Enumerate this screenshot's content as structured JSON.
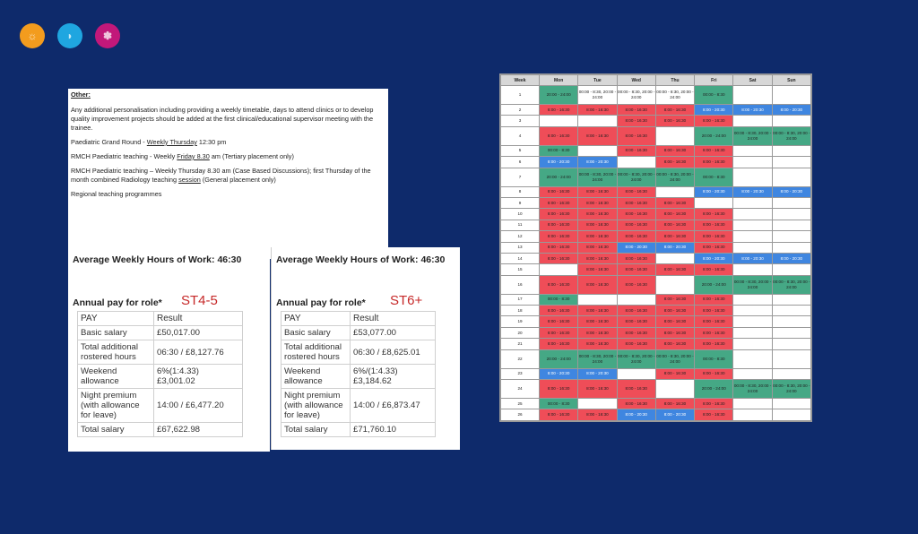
{
  "brand": {
    "dot_colors": [
      "#f39c1e",
      "#1fa6e0",
      "#c2187a"
    ],
    "dot_glyphs": [
      "☼",
      "◗",
      "✽"
    ]
  },
  "other": {
    "heading": "Other:",
    "para1": "Any additional personalisation including providing a weekly timetable, days to attend clinics or to develop quality improvement projects should be added at the first clinical/educational supervisor meeting with the trainee.",
    "grand_round_prefix": "Paediatric Grand Round - ",
    "grand_round_day": "Weekly  Thursday",
    "grand_round_time": "  12:30 pm",
    "rmch1_prefix": "RMCH Paediatric teaching - Weekly ",
    "rmch1_day": "Friday  8.30",
    "rmch1_suffix": " am (Tertiary placement  only)",
    "rmch2_prefix": "RMCH Paediatric teaching – Weekly Thursday 8.30 am (Case Based Discussions); first Thursday of the month combined Radiology teaching ",
    "rmch2_session": "session",
    "rmch2_suffix": "  (General placement only)",
    "regional": "Regional teaching programmes"
  },
  "pay_panels": [
    {
      "hours": "Average Weekly Hours of Work:  46:30",
      "annual": "Annual pay for role*",
      "role": "ST4-5",
      "hdr_pay": "PAY",
      "hdr_result": "Result",
      "rows": [
        {
          "label": "Basic salary",
          "value": "£50,017.00"
        },
        {
          "label": "Total additional rostered hours",
          "value": "06:30 / £8,127.76"
        },
        {
          "label": "Weekend allowance",
          "value": "6%(1:4.33) £3,001.02"
        },
        {
          "label": "Night premium (with allowance for leave)",
          "value": "14:00 / £6,477.20"
        },
        {
          "label": "Total salary",
          "value": "£67,622.98"
        }
      ]
    },
    {
      "hours": "Average Weekly Hours of Work:  46:30",
      "annual": "Annual pay for role*",
      "role": "ST6+",
      "hdr_pay": "PAY",
      "hdr_result": "Result",
      "rows": [
        {
          "label": "Basic salary",
          "value": "£53,077.00"
        },
        {
          "label": "Total additional rostered hours",
          "value": "06:30 / £8,625.01"
        },
        {
          "label": "Weekend allowance",
          "value": "6%/(1:4.33) £3,184.62"
        },
        {
          "label": "Night premium (with allowance for leave)",
          "value": "14:00 / £6,873.47"
        },
        {
          "label": "Total salary",
          "value": "£71,760.10"
        }
      ]
    }
  ],
  "schedule": {
    "headers": [
      "Week",
      "Mon",
      "Tue",
      "Wed",
      "Thu",
      "Fri",
      "Sat",
      "Sun"
    ],
    "rows": [
      {
        "week": "1",
        "tall": true,
        "cells": [
          [
            "teal",
            "20:00 - 24:00"
          ],
          [
            "empty",
            "00:00 - 8:30, 20:00 - 24:00"
          ],
          [
            "empty",
            "00:00 - 8:30, 20:00 - 24:00"
          ],
          [
            "empty",
            "00:00 - 8:30, 20:00 - 24:00"
          ],
          [
            "teal",
            "00:00 - 8:30"
          ],
          [
            "empty",
            ""
          ],
          [
            "empty",
            ""
          ]
        ]
      },
      {
        "week": "2",
        "cells": [
          [
            "red",
            "8:00 - 16:30"
          ],
          [
            "red",
            "8:00 - 16:30"
          ],
          [
            "red",
            "8:00 - 16:30"
          ],
          [
            "red",
            "8:00 - 16:30"
          ],
          [
            "blue",
            "8:00 - 20:30"
          ],
          [
            "blue",
            "8:00 - 20:30"
          ],
          [
            "blue",
            "8:00 - 20:30"
          ]
        ]
      },
      {
        "week": "3",
        "cells": [
          [
            "empty",
            ""
          ],
          [
            "empty",
            ""
          ],
          [
            "red",
            "8:00 - 16:30"
          ],
          [
            "red",
            "8:00 - 16:30"
          ],
          [
            "red",
            "8:00 - 16:30"
          ],
          [
            "empty",
            ""
          ],
          [
            "empty",
            ""
          ]
        ]
      },
      {
        "week": "4",
        "tall": true,
        "cells": [
          [
            "red",
            "8:00 - 16:30"
          ],
          [
            "red",
            "8:00 - 16:30"
          ],
          [
            "red",
            "8:00 - 16:30"
          ],
          [
            "empty",
            ""
          ],
          [
            "teal",
            "20:00 - 24:00"
          ],
          [
            "teal",
            "00:00 - 8:30, 20:00 - 24:00"
          ],
          [
            "teal",
            "00:00 - 8:30, 20:00 - 24:00"
          ]
        ]
      },
      {
        "week": "5",
        "cells": [
          [
            "teal",
            "00:00 - 8:30"
          ],
          [
            "empty",
            ""
          ],
          [
            "red",
            "8:00 - 16:30"
          ],
          [
            "red",
            "8:00 - 16:30"
          ],
          [
            "red",
            "8:00 - 16:30"
          ],
          [
            "empty",
            ""
          ],
          [
            "empty",
            ""
          ]
        ]
      },
      {
        "week": "6",
        "cells": [
          [
            "blue",
            "8:00 - 20:30"
          ],
          [
            "blue",
            "8:00 - 20:30"
          ],
          [
            "empty",
            ""
          ],
          [
            "red",
            "8:00 - 16:30"
          ],
          [
            "red",
            "8:00 - 16:30"
          ],
          [
            "empty",
            ""
          ],
          [
            "empty",
            ""
          ]
        ]
      },
      {
        "week": "7",
        "tall": true,
        "cells": [
          [
            "teal",
            "20:00 - 24:00"
          ],
          [
            "teal",
            "00:00 - 8:30, 20:00 - 24:00"
          ],
          [
            "teal",
            "00:00 - 8:30, 20:00 - 24:00"
          ],
          [
            "teal",
            "00:00 - 8:30, 20:00 - 24:00"
          ],
          [
            "teal",
            "00:00 - 8:30"
          ],
          [
            "empty",
            ""
          ],
          [
            "empty",
            ""
          ]
        ]
      },
      {
        "week": "8",
        "cells": [
          [
            "red",
            "8:00 - 16:30"
          ],
          [
            "red",
            "8:00 - 16:30"
          ],
          [
            "red",
            "8:00 - 16:30"
          ],
          [
            "empty",
            ""
          ],
          [
            "blue",
            "8:00 - 20:30"
          ],
          [
            "blue",
            "8:00 - 20:30"
          ],
          [
            "blue",
            "8:00 - 20:30"
          ]
        ]
      },
      {
        "week": "9",
        "cells": [
          [
            "red",
            "8:00 - 16:30"
          ],
          [
            "red",
            "8:00 - 16:30"
          ],
          [
            "red",
            "8:00 - 16:30"
          ],
          [
            "red",
            "8:00 - 16:30"
          ],
          [
            "empty",
            ""
          ],
          [
            "empty",
            ""
          ],
          [
            "empty",
            ""
          ]
        ]
      },
      {
        "week": "10",
        "cells": [
          [
            "red",
            "8:00 - 16:30"
          ],
          [
            "red",
            "8:00 - 16:30"
          ],
          [
            "red",
            "8:00 - 16:30"
          ],
          [
            "red",
            "8:00 - 16:30"
          ],
          [
            "red",
            "8:00 - 16:30"
          ],
          [
            "empty",
            ""
          ],
          [
            "empty",
            ""
          ]
        ]
      },
      {
        "week": "11",
        "cells": [
          [
            "red",
            "8:00 - 16:30"
          ],
          [
            "red",
            "8:00 - 16:30"
          ],
          [
            "red",
            "8:00 - 16:30"
          ],
          [
            "red",
            "8:00 - 16:30"
          ],
          [
            "red",
            "8:00 - 16:30"
          ],
          [
            "empty",
            ""
          ],
          [
            "empty",
            ""
          ]
        ]
      },
      {
        "week": "12",
        "cells": [
          [
            "red",
            "8:00 - 16:30"
          ],
          [
            "red",
            "8:00 - 16:30"
          ],
          [
            "red",
            "8:00 - 16:30"
          ],
          [
            "red",
            "8:00 - 16:30"
          ],
          [
            "red",
            "8:00 - 16:30"
          ],
          [
            "empty",
            ""
          ],
          [
            "empty",
            ""
          ]
        ]
      },
      {
        "week": "13",
        "cells": [
          [
            "red",
            "8:00 - 16:30"
          ],
          [
            "red",
            "8:00 - 16:30"
          ],
          [
            "blue",
            "8:00 - 20:30"
          ],
          [
            "blue",
            "8:00 - 20:30"
          ],
          [
            "red",
            "8:00 - 16:30"
          ],
          [
            "empty",
            ""
          ],
          [
            "empty",
            ""
          ]
        ]
      },
      {
        "week": "14",
        "cells": [
          [
            "red",
            "8:00 - 16:30"
          ],
          [
            "red",
            "8:00 - 16:30"
          ],
          [
            "red",
            "8:00 - 16:30"
          ],
          [
            "empty",
            ""
          ],
          [
            "blue",
            "8:00 - 20:30"
          ],
          [
            "blue",
            "8:00 - 20:30"
          ],
          [
            "blue",
            "8:00 - 20:30"
          ]
        ]
      },
      {
        "week": "15",
        "cells": [
          [
            "empty",
            ""
          ],
          [
            "red",
            "8:00 - 16:30"
          ],
          [
            "red",
            "8:00 - 16:30"
          ],
          [
            "red",
            "8:00 - 16:30"
          ],
          [
            "red",
            "8:00 - 16:30"
          ],
          [
            "empty",
            ""
          ],
          [
            "empty",
            ""
          ]
        ]
      },
      {
        "week": "16",
        "tall": true,
        "cells": [
          [
            "red",
            "8:00 - 16:30"
          ],
          [
            "red",
            "8:00 - 16:30"
          ],
          [
            "red",
            "8:00 - 16:30"
          ],
          [
            "empty",
            ""
          ],
          [
            "teal",
            "20:00 - 24:00"
          ],
          [
            "teal",
            "00:00 - 8:30, 20:00 - 24:00"
          ],
          [
            "teal",
            "00:00 - 8:30, 20:00 - 24:00"
          ]
        ]
      },
      {
        "week": "17",
        "cells": [
          [
            "teal",
            "00:00 - 8:30"
          ],
          [
            "empty",
            ""
          ],
          [
            "empty",
            ""
          ],
          [
            "red",
            "8:00 - 16:30"
          ],
          [
            "red",
            "8:00 - 16:30"
          ],
          [
            "empty",
            ""
          ],
          [
            "empty",
            ""
          ]
        ]
      },
      {
        "week": "18",
        "cells": [
          [
            "red",
            "8:00 - 16:30"
          ],
          [
            "red",
            "8:00 - 16:30"
          ],
          [
            "red",
            "8:00 - 16:30"
          ],
          [
            "red",
            "8:00 - 16:30"
          ],
          [
            "red",
            "8:00 - 16:30"
          ],
          [
            "empty",
            ""
          ],
          [
            "empty",
            ""
          ]
        ]
      },
      {
        "week": "19",
        "cells": [
          [
            "red",
            "8:00 - 16:30"
          ],
          [
            "red",
            "8:00 - 16:30"
          ],
          [
            "red",
            "8:00 - 16:30"
          ],
          [
            "red",
            "8:00 - 16:30"
          ],
          [
            "red",
            "8:00 - 16:30"
          ],
          [
            "empty",
            ""
          ],
          [
            "empty",
            ""
          ]
        ]
      },
      {
        "week": "20",
        "cells": [
          [
            "red",
            "8:00 - 16:30"
          ],
          [
            "red",
            "8:00 - 16:30"
          ],
          [
            "red",
            "8:00 - 16:30"
          ],
          [
            "red",
            "8:00 - 16:30"
          ],
          [
            "red",
            "8:00 - 16:30"
          ],
          [
            "empty",
            ""
          ],
          [
            "empty",
            ""
          ]
        ]
      },
      {
        "week": "21",
        "cells": [
          [
            "red",
            "8:00 - 16:30"
          ],
          [
            "red",
            "8:00 - 16:30"
          ],
          [
            "red",
            "8:00 - 16:30"
          ],
          [
            "red",
            "8:00 - 16:30"
          ],
          [
            "red",
            "8:00 - 16:30"
          ],
          [
            "empty",
            ""
          ],
          [
            "empty",
            ""
          ]
        ]
      },
      {
        "week": "22",
        "tall": true,
        "cells": [
          [
            "teal",
            "20:00 - 24:00"
          ],
          [
            "teal",
            "00:00 - 8:30, 20:00 - 24:00"
          ],
          [
            "teal",
            "00:00 - 8:30, 20:00 - 24:00"
          ],
          [
            "teal",
            "00:00 - 8:30, 20:00 - 24:00"
          ],
          [
            "teal",
            "00:00 - 8:30"
          ],
          [
            "empty",
            ""
          ],
          [
            "empty",
            ""
          ]
        ]
      },
      {
        "week": "23",
        "cells": [
          [
            "blue",
            "8:00 - 20:30"
          ],
          [
            "blue",
            "8:00 - 20:30"
          ],
          [
            "empty",
            ""
          ],
          [
            "red",
            "8:00 - 16:30"
          ],
          [
            "red",
            "8:00 - 16:30"
          ],
          [
            "empty",
            ""
          ],
          [
            "empty",
            ""
          ]
        ]
      },
      {
        "week": "24",
        "tall": true,
        "cells": [
          [
            "red",
            "8:00 - 16:30"
          ],
          [
            "red",
            "8:00 - 16:30"
          ],
          [
            "red",
            "8:00 - 16:30"
          ],
          [
            "empty",
            ""
          ],
          [
            "teal",
            "20:00 - 24:00"
          ],
          [
            "teal",
            "00:00 - 8:30, 20:00 - 24:00"
          ],
          [
            "teal",
            "00:00 - 8:30, 20:00 - 24:00"
          ]
        ]
      },
      {
        "week": "25",
        "cells": [
          [
            "teal",
            "00:00 - 8:30"
          ],
          [
            "empty",
            ""
          ],
          [
            "red",
            "8:00 - 16:30"
          ],
          [
            "red",
            "8:00 - 16:30"
          ],
          [
            "red",
            "8:00 - 16:30"
          ],
          [
            "empty",
            ""
          ],
          [
            "empty",
            ""
          ]
        ]
      },
      {
        "week": "26",
        "cells": [
          [
            "red",
            "8:00 - 16:30"
          ],
          [
            "red",
            "8:00 - 16:30"
          ],
          [
            "blue",
            "8:00 - 20:30"
          ],
          [
            "blue",
            "8:00 - 20:30"
          ],
          [
            "red",
            "8:00 - 16:30"
          ],
          [
            "empty",
            ""
          ],
          [
            "empty",
            ""
          ]
        ]
      }
    ]
  }
}
